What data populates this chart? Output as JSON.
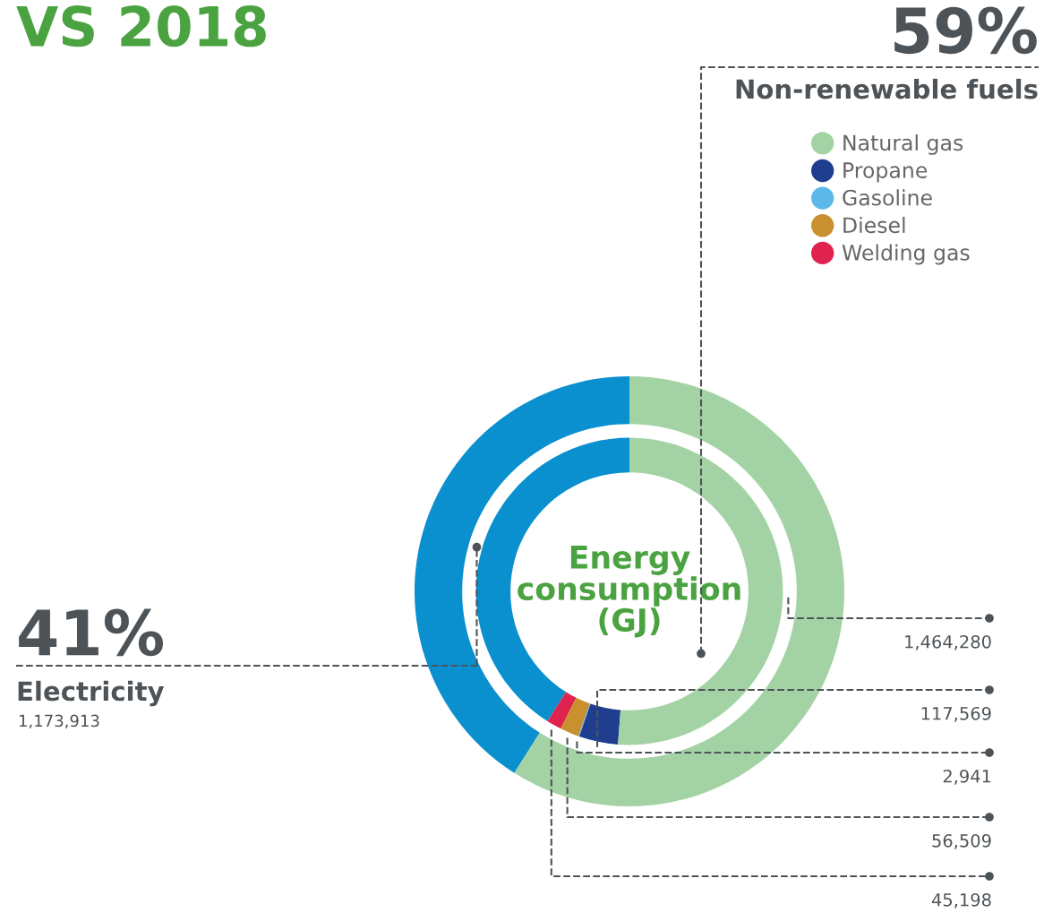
{
  "chart_data": {
    "type": "donut",
    "title": "VS 2018",
    "subtitle": "Energy consumption (GJ)",
    "legend": "top right",
    "categories": [
      "Electricity",
      "Welding gas",
      "Diesel",
      "Gasoline",
      "Propane",
      "Natural gas",
      "Non-renewable fuels"
    ],
    "colors": [
      "#0a8fcf",
      "#e0234e",
      "#c8902e",
      "#5bb8e8",
      "#1f3e8f",
      "#a3d3a4",
      "#a3d3a4"
    ],
    "series": [
      {
        "values": [
          41,
          null,
          null,
          null,
          null,
          null,
          59
        ],
        "value_labels": [
          "41%",
          null,
          null,
          null,
          null,
          null,
          "59%"
        ]
      },
      {
        "values": [
          1173913,
          45198,
          56509,
          2941,
          117569,
          1464280,
          null
        ],
        "value_labels": [
          "1,173,913",
          "45,198",
          "56,509",
          "2,941",
          "117,569",
          "1,464,280",
          null
        ]
      }
    ]
  }
}
